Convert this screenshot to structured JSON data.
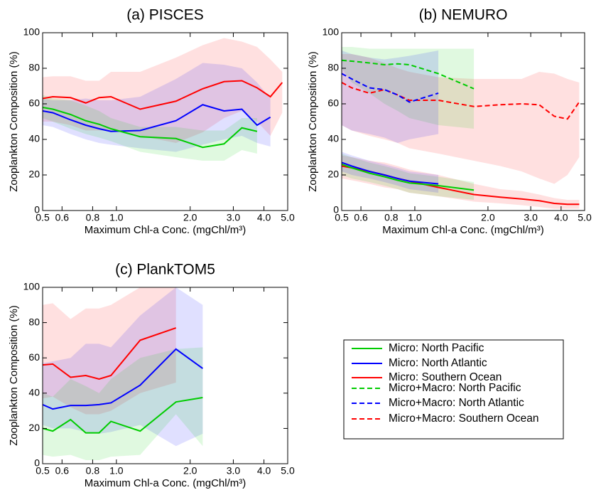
{
  "chart_data": [
    {
      "type": "line",
      "title": "(a) PISCES",
      "x_label": "Maximum Chl-a Conc. (mgChl/m³)",
      "y_label": "Zooplankton Composition (%)",
      "xscale": "log",
      "xlim": [
        0.5,
        5.0
      ],
      "ylim": [
        0,
        100
      ],
      "xticks": [
        0.5,
        0.6,
        0.8,
        {
          "value": 1,
          "label": "1.0"
        },
        {
          "value": 2,
          "label": "2.0"
        },
        {
          "value": 3,
          "label": "3.0"
        },
        {
          "value": 4,
          "label": "4.0"
        },
        {
          "value": 5,
          "label": "5.0"
        }
      ],
      "yticks": [
        0,
        20,
        40,
        60,
        80,
        100
      ],
      "x": [
        0.5,
        0.55,
        0.65,
        0.75,
        0.85,
        0.95,
        1.25,
        1.75,
        2.25,
        2.75,
        3.25,
        3.75,
        4.25,
        4.75
      ],
      "series": [
        {
          "color": "#ff0000",
          "dash": false,
          "values": [
            63,
            64,
            63.5,
            60.5,
            63.5,
            64,
            57,
            61.5,
            68.5,
            72.5,
            73,
            69,
            64,
            72
          ],
          "lower": [
            50,
            50,
            48,
            45,
            45,
            45,
            42,
            38,
            44,
            52,
            56,
            50,
            42,
            55
          ],
          "upper": [
            75,
            75.5,
            75.5,
            73,
            73,
            78,
            78,
            86,
            93,
            97,
            95,
            92,
            85,
            78
          ]
        },
        {
          "color": "#0000ff",
          "dash": false,
          "values": [
            56,
            55,
            51,
            48,
            46,
            44.5,
            45,
            50.5,
            59.5,
            56,
            57,
            48,
            52.5,
            null
          ],
          "lower": [
            48,
            47,
            43,
            40,
            38,
            37,
            35,
            33,
            37,
            40,
            42,
            38,
            36,
            null
          ],
          "upper": [
            63,
            62,
            62,
            63,
            62,
            62,
            64,
            74,
            83,
            82,
            80,
            72,
            63,
            null
          ]
        },
        {
          "color": "#00cc00",
          "dash": false,
          "values": [
            58,
            57,
            54,
            50.5,
            48.5,
            46,
            41.5,
            40.5,
            35.5,
            37.5,
            46.5,
            44.5,
            null,
            null
          ],
          "lower": [
            52,
            50,
            46,
            43,
            41,
            39,
            33,
            30,
            28,
            28,
            34,
            32,
            null,
            null
          ],
          "upper": [
            65,
            63,
            62,
            59,
            56,
            52,
            47,
            47,
            45,
            45,
            52,
            52,
            null,
            null
          ]
        }
      ]
    },
    {
      "type": "line",
      "title": "(b) NEMURO",
      "x_label": "Maximum Chl-a Conc. (mgChl/m³)",
      "y_label": "Zooplankton Composition (%)",
      "xscale": "log",
      "xlim": [
        0.5,
        5.0
      ],
      "ylim": [
        0,
        100
      ],
      "xticks": [
        0.5,
        0.6,
        0.8,
        {
          "value": 1,
          "label": "1.0"
        },
        {
          "value": 2,
          "label": "2.0"
        },
        {
          "value": 3,
          "label": "3.0"
        },
        {
          "value": 4,
          "label": "4.0"
        },
        {
          "value": 5,
          "label": "5.0"
        }
      ],
      "yticks": [
        0,
        20,
        40,
        60,
        80,
        100
      ],
      "x": [
        0.5,
        0.55,
        0.65,
        0.75,
        0.85,
        0.95,
        1.25,
        1.75,
        2.25,
        2.75,
        3.25,
        3.75,
        4.25,
        4.75
      ],
      "series": [
        {
          "color": "#ff0000",
          "dash": true,
          "values": [
            72,
            69,
            66,
            68,
            65,
            62,
            62,
            58.5,
            59.5,
            60,
            59.5,
            53,
            51.5,
            61
          ],
          "lower": [
            48,
            45,
            42,
            40,
            38,
            35,
            32,
            28,
            25,
            22,
            18,
            15,
            20,
            30
          ],
          "upper": [
            88,
            88,
            86,
            83,
            80,
            78,
            75,
            74,
            74,
            74,
            78,
            77,
            74,
            72
          ]
        },
        {
          "color": "#00cc00",
          "dash": true,
          "values": [
            84.5,
            84,
            83,
            82,
            82.5,
            82,
            77,
            68.5,
            null,
            null,
            null,
            null,
            null,
            null
          ],
          "lower": [
            80,
            72,
            66,
            60,
            56,
            52,
            48,
            46,
            null,
            null,
            null,
            null,
            null,
            null
          ],
          "upper": [
            92,
            92,
            91,
            91,
            91,
            91,
            91,
            91,
            null,
            null,
            null,
            null,
            null,
            null
          ]
        },
        {
          "color": "#0000ff",
          "dash": true,
          "values": [
            77,
            74,
            69,
            68,
            65,
            61,
            66,
            null,
            null,
            null,
            null,
            null,
            null,
            null
          ],
          "lower": [
            48,
            45,
            43,
            41,
            38,
            40,
            43,
            null,
            null,
            null,
            null,
            null,
            null,
            null
          ],
          "upper": [
            90,
            88,
            86,
            85,
            86,
            87,
            90,
            null,
            null,
            null,
            null,
            null,
            null,
            null
          ]
        },
        {
          "color": "#ff0000",
          "dash": false,
          "values": [
            25,
            24,
            22,
            20,
            18,
            16.5,
            13,
            9,
            7.5,
            6.5,
            5.5,
            4,
            3.5,
            3.5
          ],
          "lower": [
            18,
            17,
            15,
            13,
            12,
            10,
            8,
            5,
            4,
            3,
            2,
            1,
            1,
            1
          ],
          "upper": [
            31,
            30,
            28,
            27,
            25,
            23,
            20,
            15,
            12,
            11,
            9,
            7,
            6,
            6
          ]
        },
        {
          "color": "#00cc00",
          "dash": false,
          "values": [
            26,
            24,
            21,
            19,
            17,
            15.5,
            14,
            11.5,
            null,
            null,
            null,
            null,
            null,
            null
          ],
          "lower": [
            20,
            18,
            16,
            14,
            12,
            10,
            8,
            6,
            null,
            null,
            null,
            null,
            null,
            null
          ],
          "upper": [
            32,
            30,
            27,
            25,
            23,
            21,
            19,
            16,
            null,
            null,
            null,
            null,
            null,
            null
          ]
        },
        {
          "color": "#0000ff",
          "dash": false,
          "values": [
            27,
            25,
            22,
            20,
            18,
            16.5,
            15,
            null,
            null,
            null,
            null,
            null,
            null,
            null
          ],
          "lower": [
            22,
            20,
            18,
            16,
            14,
            12,
            10,
            null,
            null,
            null,
            null,
            null,
            null,
            null
          ],
          "upper": [
            33,
            31,
            28,
            26,
            24,
            22,
            20,
            null,
            null,
            null,
            null,
            null,
            null,
            null
          ]
        }
      ]
    },
    {
      "type": "line",
      "title": "(c) PlankTOM5",
      "x_label": "Maximum Chl-a Conc. (mgChl/m³)",
      "y_label": "Zooplankton Composition (%)",
      "xscale": "log",
      "xlim": [
        0.5,
        5.0
      ],
      "ylim": [
        0,
        100
      ],
      "xticks": [
        0.5,
        0.6,
        0.8,
        {
          "value": 1,
          "label": "1.0"
        },
        {
          "value": 2,
          "label": "2.0"
        },
        {
          "value": 3,
          "label": "3.0"
        },
        {
          "value": 4,
          "label": "4.0"
        },
        {
          "value": 5,
          "label": "5.0"
        }
      ],
      "yticks": [
        0,
        20,
        40,
        60,
        80,
        100
      ],
      "x": [
        0.5,
        0.55,
        0.65,
        0.75,
        0.85,
        0.95,
        1.25,
        1.75,
        2.25
      ],
      "series": [
        {
          "color": "#ff0000",
          "dash": false,
          "values": [
            56,
            56.5,
            49,
            50,
            48,
            50,
            70,
            77,
            null
          ],
          "lower": [
            37,
            38,
            32,
            28,
            28,
            30,
            40,
            46,
            null
          ],
          "upper": [
            90,
            91,
            82,
            88,
            88,
            90,
            100,
            100,
            null
          ]
        },
        {
          "color": "#0000ff",
          "dash": false,
          "values": [
            33.5,
            31,
            33,
            33,
            33.5,
            34.5,
            44.5,
            65,
            54
          ],
          "lower": [
            22,
            20,
            20,
            18,
            17,
            18,
            22,
            10,
            17
          ],
          "upper": [
            57,
            58,
            60,
            68,
            68,
            66,
            84,
            100,
            90
          ]
        },
        {
          "color": "#00cc00",
          "dash": false,
          "values": [
            20,
            18.5,
            25,
            17.5,
            17.5,
            24,
            18.5,
            35,
            37.5
          ],
          "lower": [
            5,
            4,
            5,
            2,
            2,
            4,
            5,
            28,
            10
          ],
          "upper": [
            40,
            38,
            48,
            44,
            40,
            48,
            60,
            65,
            66
          ]
        }
      ]
    }
  ],
  "legend": {
    "entries": [
      {
        "name": "Micro: North Pacific",
        "color": "#00cc00",
        "dash": false
      },
      {
        "name": "Micro: North Atlantic",
        "color": "#0000ff",
        "dash": false
      },
      {
        "name": "Micro: Southern Ocean",
        "color": "#ff0000",
        "dash": false
      },
      {
        "name": "Micro+Macro: North Pacific",
        "color": "#00cc00",
        "dash": true
      },
      {
        "name": "Micro+Macro: North Atlantic",
        "color": "#0000ff",
        "dash": true
      },
      {
        "name": "Micro+Macro: Southern Ocean",
        "color": "#ff0000",
        "dash": true
      }
    ]
  }
}
